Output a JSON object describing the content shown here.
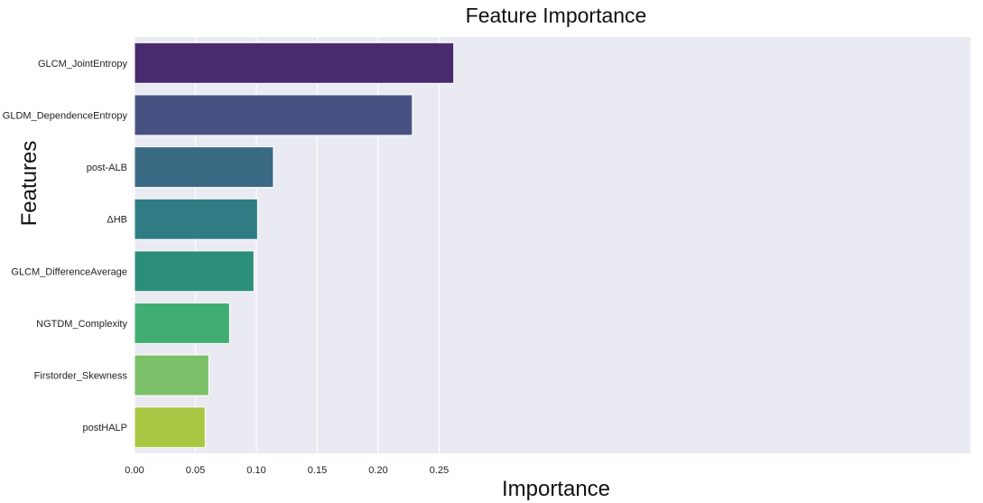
{
  "chart_data": {
    "type": "bar",
    "orientation": "horizontal",
    "title": "Feature Importance",
    "xlabel": "Importance",
    "ylabel": "Features",
    "xlim": [
      0,
      0.275
    ],
    "xticks": [
      0.0,
      0.05,
      0.1,
      0.15,
      0.2,
      0.25
    ],
    "xtick_labels": [
      "0.00",
      "0.05",
      "0.10",
      "0.15",
      "0.20",
      "0.25"
    ],
    "grid": true,
    "categories": [
      "GLCM_JointEntropy",
      "GLDM_DependenceEntropy",
      "post-ALB",
      "ΔHB",
      "GLCM_DifferenceAverage",
      "NGTDM_Complexity",
      "Firstorder_Skewness",
      "postHALP"
    ],
    "values": [
      0.262,
      0.228,
      0.114,
      0.101,
      0.098,
      0.078,
      0.061,
      0.058
    ],
    "colors": [
      "#482a6e",
      "#475283",
      "#3b6a85",
      "#2f7c84",
      "#2b8e7a",
      "#40ad73",
      "#7bbf68",
      "#a9c743"
    ],
    "background_color": "#eaeaf2",
    "grid_color": "#ffffff"
  }
}
